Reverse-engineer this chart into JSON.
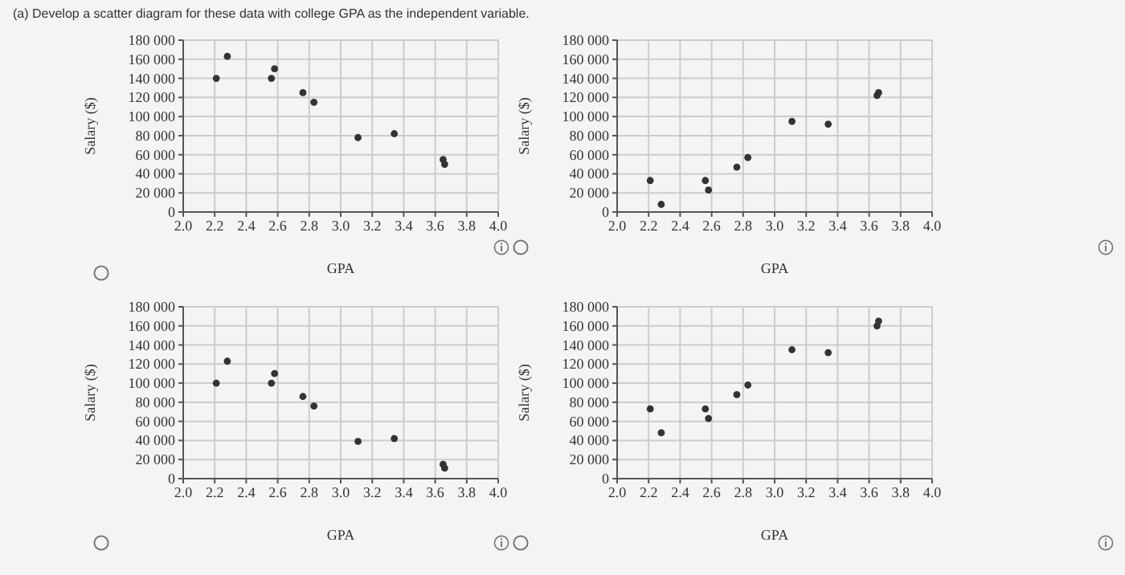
{
  "chart_data": [
    {
      "type": "scatter",
      "title": "(a) Develop a scatter diagram for these data with college GPA as the independent variable.",
      "xlabel": "GPA",
      "ylabel": "Salary ($)",
      "x": [
        2.21,
        2.28,
        2.56,
        2.58,
        2.76,
        2.83,
        3.11,
        3.34,
        3.65,
        3.66
      ],
      "values": [
        140000,
        163000,
        140000,
        150000,
        125000,
        115000,
        78000,
        82000,
        55000,
        50000
      ],
      "color": "#333333",
      "marker": "circle",
      "grid": true,
      "xlim": [
        2.0,
        4.0
      ],
      "ylim": [
        0,
        180000
      ],
      "xticks": [
        {
          "value": 2.0,
          "label": "2.0"
        },
        2.2,
        2.4,
        2.6,
        2.8,
        {
          "value": 3.0,
          "label": "3.0"
        },
        3.2,
        3.4,
        3.6,
        3.8,
        {
          "value": 4.0,
          "label": "4.0"
        }
      ],
      "yticks": [
        {
          "value": 0,
          "label": "0"
        },
        {
          "value": 20000,
          "label": "20 000"
        },
        {
          "value": 40000,
          "label": "40 000"
        },
        {
          "value": 60000,
          "label": "60 000"
        },
        {
          "value": 80000,
          "label": "80 000"
        },
        {
          "value": 100000,
          "label": "100 000"
        },
        {
          "value": 120000,
          "label": "120 000"
        },
        {
          "value": 140000,
          "label": "140 000"
        },
        {
          "value": 160000,
          "label": "160 000"
        },
        {
          "value": 180000,
          "label": "180 000"
        }
      ]
    },
    {
      "type": "scatter",
      "xlabel": "GPA",
      "ylabel": "Salary ($)",
      "x": [
        2.21,
        2.28,
        2.56,
        2.58,
        2.76,
        2.83,
        3.11,
        3.34,
        3.65,
        3.66
      ],
      "values": [
        33000,
        8000,
        33000,
        23000,
        47000,
        57000,
        95000,
        92000,
        122000,
        125000
      ],
      "color": "#333333",
      "marker": "circle",
      "grid": true,
      "xlim": [
        2.0,
        4.0
      ],
      "ylim": [
        0,
        180000
      ],
      "xticks": [
        {
          "value": 2.0,
          "label": "2.0"
        },
        2.2,
        2.4,
        2.6,
        2.8,
        {
          "value": 3.0,
          "label": "3.0"
        },
        3.2,
        3.4,
        3.6,
        3.8,
        {
          "value": 4.0,
          "label": "4.0"
        }
      ],
      "yticks": [
        {
          "value": 0,
          "label": "0"
        },
        {
          "value": 20000,
          "label": "20 000"
        },
        {
          "value": 40000,
          "label": "40 000"
        },
        {
          "value": 60000,
          "label": "60 000"
        },
        {
          "value": 80000,
          "label": "80 000"
        },
        {
          "value": 100000,
          "label": "100 000"
        },
        {
          "value": 120000,
          "label": "120 000"
        },
        {
          "value": 140000,
          "label": "140 000"
        },
        {
          "value": 160000,
          "label": "160 000"
        },
        {
          "value": 180000,
          "label": "180 000"
        }
      ]
    },
    {
      "type": "scatter",
      "xlabel": "GPA",
      "ylabel": "Salary ($)",
      "x": [
        2.21,
        2.28,
        2.56,
        2.58,
        2.76,
        2.83,
        3.11,
        3.34,
        3.65,
        3.66
      ],
      "values": [
        100000,
        123000,
        100000,
        110000,
        86000,
        76000,
        39000,
        42000,
        15000,
        11000
      ],
      "color": "#333333",
      "marker": "circle",
      "grid": true,
      "xlim": [
        2.0,
        4.0
      ],
      "ylim": [
        0,
        180000
      ],
      "xticks": [
        {
          "value": 2.0,
          "label": "2.0"
        },
        2.2,
        2.4,
        2.6,
        2.8,
        {
          "value": 3.0,
          "label": "3.0"
        },
        3.2,
        3.4,
        3.6,
        3.8,
        {
          "value": 4.0,
          "label": "4.0"
        }
      ],
      "yticks": [
        {
          "value": 0,
          "label": "0"
        },
        {
          "value": 20000,
          "label": "20 000"
        },
        {
          "value": 40000,
          "label": "40 000"
        },
        {
          "value": 60000,
          "label": "60 000"
        },
        {
          "value": 80000,
          "label": "80 000"
        },
        {
          "value": 100000,
          "label": "100 000"
        },
        {
          "value": 120000,
          "label": "120 000"
        },
        {
          "value": 140000,
          "label": "140 000"
        },
        {
          "value": 160000,
          "label": "160 000"
        },
        {
          "value": 180000,
          "label": "180 000"
        }
      ]
    },
    {
      "type": "scatter",
      "xlabel": "GPA",
      "ylabel": "Salary ($)",
      "x": [
        2.21,
        2.28,
        2.56,
        2.58,
        2.76,
        2.83,
        3.11,
        3.34,
        3.65,
        3.66
      ],
      "values": [
        73000,
        48000,
        73000,
        63000,
        88000,
        98000,
        135000,
        132000,
        160000,
        165000
      ],
      "color": "#333333",
      "marker": "circle",
      "grid": true,
      "xlim": [
        2.0,
        4.0
      ],
      "ylim": [
        0,
        180000
      ],
      "xticks": [
        {
          "value": 2.0,
          "label": "2.0"
        },
        2.2,
        2.4,
        2.6,
        2.8,
        {
          "value": 3.0,
          "label": "3.0"
        },
        3.2,
        3.4,
        3.6,
        3.8,
        {
          "value": 4.0,
          "label": "4.0"
        }
      ],
      "yticks": [
        {
          "value": 0,
          "label": "0"
        },
        {
          "value": 20000,
          "label": "20 000"
        },
        {
          "value": 40000,
          "label": "40 000"
        },
        {
          "value": 60000,
          "label": "60 000"
        },
        {
          "value": 80000,
          "label": "80 000"
        },
        {
          "value": 100000,
          "label": "100 000"
        },
        {
          "value": 120000,
          "label": "120 000"
        },
        {
          "value": 140000,
          "label": "140 000"
        },
        {
          "value": 160000,
          "label": "160 000"
        },
        {
          "value": 180000,
          "label": "180 000"
        }
      ]
    }
  ]
}
